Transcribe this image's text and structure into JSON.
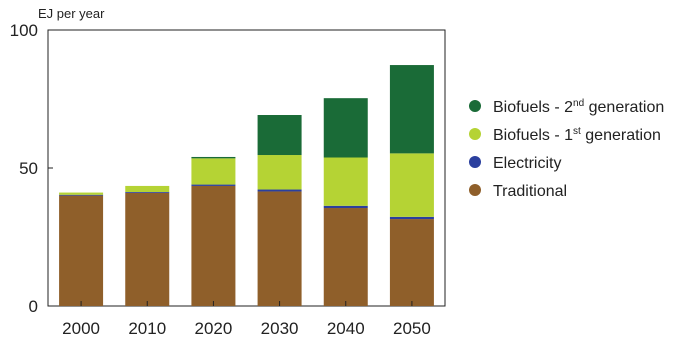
{
  "chart_data": {
    "type": "bar",
    "stacked": true,
    "ylabel": "EJ per year",
    "ylim": [
      0,
      100
    ],
    "yticks": [
      0,
      50,
      100
    ],
    "grid": false,
    "legend_position": "right",
    "categories": [
      "2000",
      "2010",
      "2020",
      "2030",
      "2040",
      "2050"
    ],
    "series": [
      {
        "name": "Traditional",
        "color": "#8f5f2a",
        "values": [
          40,
          41,
          43.5,
          41.5,
          35.5,
          31.5
        ]
      },
      {
        "name": "Electricity",
        "color": "#2b3f9e",
        "values": [
          0.3,
          0.3,
          0.5,
          0.7,
          0.8,
          0.8
        ]
      },
      {
        "name": "Biofuels - 1st generation",
        "name_base": "Biofuels - 1",
        "name_sup": "st",
        "name_tail": " generation",
        "color": "#b5d334",
        "values": [
          0.8,
          2.2,
          9.5,
          12.5,
          17.5,
          23
        ]
      },
      {
        "name": "Biofuels - 2nd generation",
        "name_base": "Biofuels - 2",
        "name_sup": "nd",
        "name_tail": " generation",
        "color": "#1a6b37",
        "values": [
          0,
          0,
          0.5,
          14.5,
          21.5,
          32
        ]
      }
    ],
    "legend_order": [
      "Biofuels - 2nd generation",
      "Biofuels - 1st generation",
      "Electricity",
      "Traditional"
    ]
  }
}
